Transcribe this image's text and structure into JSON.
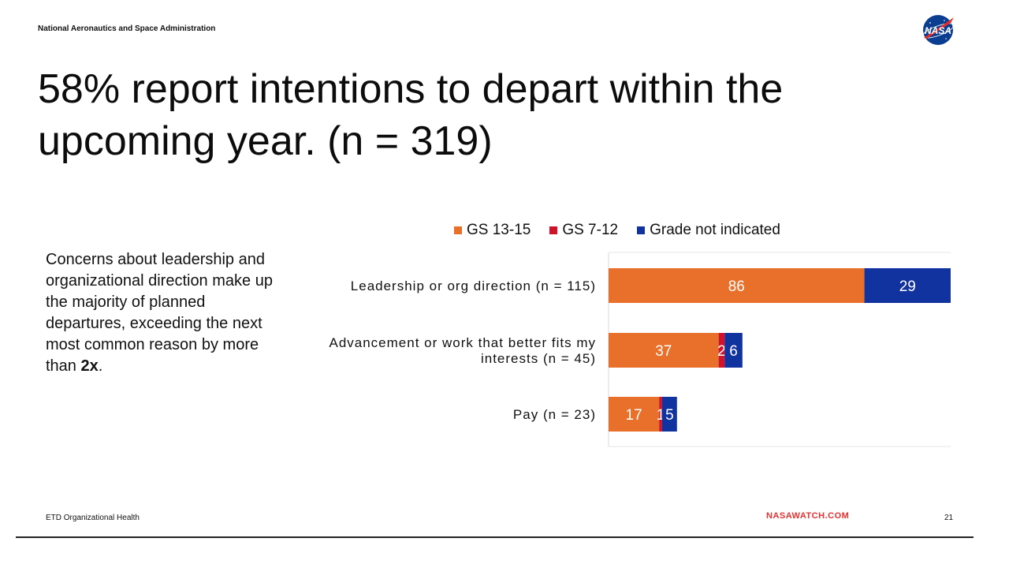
{
  "header": {
    "agency": "National Aeronautics and Space Administration",
    "logo_text": "NASA"
  },
  "title": "58% report intentions to depart within the upcoming year. (n = 319)",
  "body": {
    "text_before": "Concerns about leadership and organizational direction make up the majority of planned departures, exceeding the next most common reason by more than ",
    "emphasis": "2x",
    "text_after": "."
  },
  "chart_data": {
    "type": "bar",
    "orientation": "horizontal",
    "stacked": true,
    "categories": [
      [
        "Leadership or org direction (n = 115)"
      ],
      [
        "Advancement or work that better fits my",
        "interests (n = 45)"
      ],
      [
        "Pay (n = 23)"
      ]
    ],
    "series": [
      {
        "name": "GS 13-15",
        "color": "#e8702a",
        "values": [
          86,
          37,
          17
        ]
      },
      {
        "name": "GS 7-12",
        "color": "#d0122b",
        "values": [
          0,
          2,
          1
        ]
      },
      {
        "name": "Grade not indicated",
        "color": "#1133a0",
        "values": [
          29,
          6,
          5
        ]
      }
    ],
    "legend_position": "top",
    "grid": false
  },
  "footer": {
    "left": "ETD Organizational Health",
    "watermark": "NASAWATCH.COM",
    "page": "21"
  }
}
